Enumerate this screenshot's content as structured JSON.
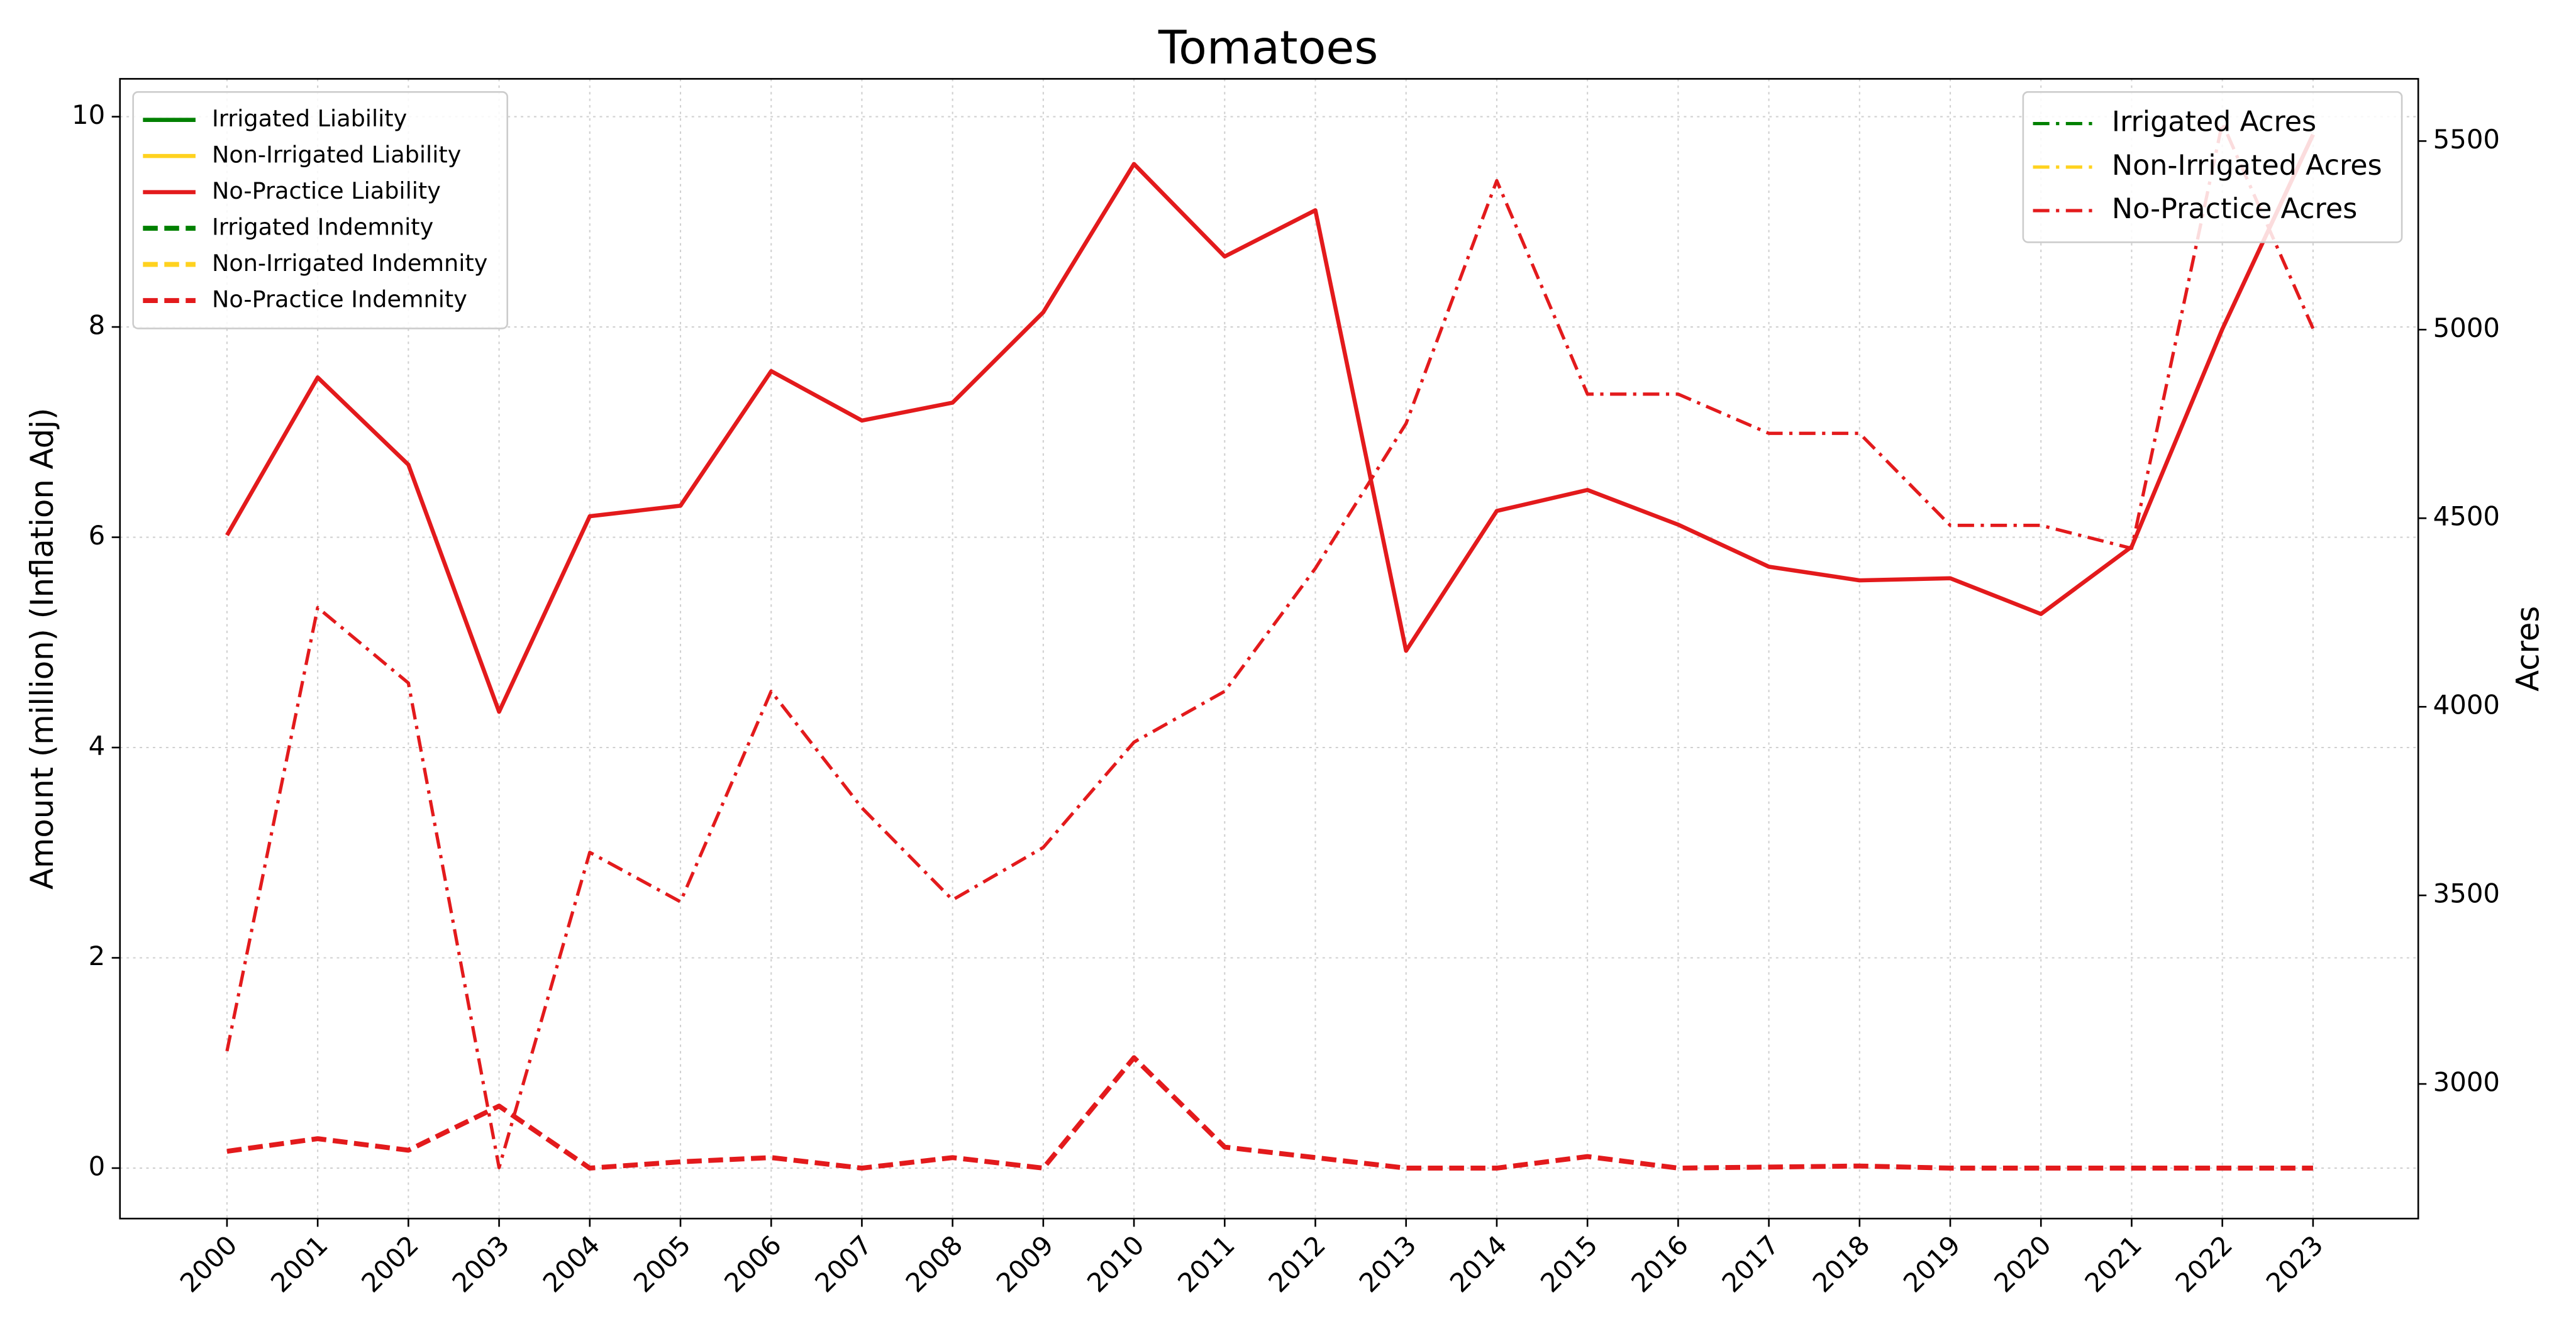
{
  "chart_data": {
    "type": "line",
    "title": "Tomatoes",
    "y_label": "Amount (million) (Inflation Adj)",
    "y2_label": "Acres",
    "x": [
      2000,
      2001,
      2002,
      2003,
      2004,
      2005,
      2006,
      2007,
      2008,
      2009,
      2010,
      2011,
      2012,
      2013,
      2014,
      2015,
      2016,
      2017,
      2018,
      2019,
      2020,
      2021,
      2022,
      2023
    ],
    "xticks": [
      2000,
      2001,
      2002,
      2003,
      2004,
      2005,
      2006,
      2007,
      2008,
      2009,
      2010,
      2011,
      2012,
      2013,
      2014,
      2015,
      2016,
      2017,
      2018,
      2019,
      2020,
      2021,
      2022,
      2023
    ],
    "xlim": [
      1998.82,
      2024.16
    ],
    "ylim": [
      -0.48,
      10.36
    ],
    "yticks": [
      0,
      2,
      4,
      6,
      8,
      10
    ],
    "y2lim": [
      2643,
      5665
    ],
    "y2ticks": [
      3000,
      3500,
      4000,
      4500,
      5000,
      5500
    ],
    "grid": true,
    "legend": "upper left",
    "y2_legend": "upper right",
    "series": [
      {
        "name": "Irrigated Liability",
        "color": "#008000",
        "linestyle": "solid",
        "axis": "y",
        "values": [
          null,
          null,
          null,
          null,
          null,
          null,
          null,
          null,
          null,
          null,
          null,
          null,
          null,
          null,
          null,
          null,
          null,
          null,
          null,
          null,
          null,
          null,
          null,
          null
        ]
      },
      {
        "name": "Non-Irrigated Liability",
        "color": "#ffd21f",
        "linestyle": "solid",
        "axis": "y",
        "values": [
          null,
          null,
          null,
          null,
          null,
          null,
          null,
          null,
          null,
          null,
          null,
          null,
          null,
          null,
          null,
          null,
          null,
          null,
          null,
          null,
          null,
          null,
          null,
          null
        ]
      },
      {
        "name": "No-Practice Liability",
        "color": "#e31a1c",
        "linestyle": "solid",
        "axis": "y",
        "values": [
          6.02,
          7.52,
          6.69,
          4.34,
          6.2,
          6.3,
          7.58,
          7.11,
          7.28,
          8.14,
          9.55,
          8.67,
          9.11,
          4.92,
          6.25,
          6.45,
          6.12,
          5.72,
          5.59,
          5.61,
          5.27,
          5.91,
          7.98,
          9.83
        ]
      },
      {
        "name": "Irrigated Indemnity",
        "color": "#008000",
        "linestyle": "dashed",
        "axis": "y",
        "values": [
          null,
          null,
          null,
          null,
          null,
          null,
          null,
          null,
          null,
          null,
          null,
          null,
          null,
          null,
          null,
          null,
          null,
          null,
          null,
          null,
          null,
          null,
          null,
          null
        ]
      },
      {
        "name": "Non-Irrigated Indemnity",
        "color": "#ffd21f",
        "linestyle": "dashed",
        "axis": "y",
        "values": [
          null,
          null,
          null,
          null,
          null,
          null,
          null,
          null,
          null,
          null,
          null,
          null,
          null,
          null,
          null,
          null,
          null,
          null,
          null,
          null,
          null,
          null,
          null,
          null
        ]
      },
      {
        "name": "No-Practice Indemnity",
        "color": "#e31a1c",
        "linestyle": "dashed",
        "axis": "y",
        "values": [
          0.16,
          0.28,
          0.17,
          0.59,
          0.0,
          0.06,
          0.1,
          0.0,
          0.1,
          0.0,
          1.05,
          0.2,
          0.1,
          0.0,
          0.0,
          0.11,
          0.0,
          0.01,
          0.02,
          0.0,
          0.0,
          0.0,
          0.0,
          0.0
        ]
      },
      {
        "name": "Irrigated Acres",
        "color": "#008000",
        "linestyle": "dashdot",
        "axis": "y2",
        "values": [
          null,
          null,
          null,
          null,
          null,
          null,
          null,
          null,
          null,
          null,
          null,
          null,
          null,
          null,
          null,
          null,
          null,
          null,
          null,
          null,
          null,
          null,
          null,
          null
        ]
      },
      {
        "name": "Non-Irrigated Acres",
        "color": "#ffd21f",
        "linestyle": "dashdot",
        "axis": "y2",
        "values": [
          null,
          null,
          null,
          null,
          null,
          null,
          null,
          null,
          null,
          null,
          null,
          null,
          null,
          null,
          null,
          null,
          null,
          null,
          null,
          null,
          null,
          null,
          null,
          null
        ]
      },
      {
        "name": "No-Practice Acres",
        "color": "#e31a1c",
        "linestyle": "dashdot",
        "axis": "y2",
        "values": [
          3087,
          4263,
          4063,
          2778,
          3614,
          3483,
          4041,
          3732,
          3488,
          3627,
          3906,
          4041,
          4367,
          4751,
          5395,
          4829,
          4829,
          4725,
          4725,
          4481,
          4481,
          4420,
          5548,
          5003
        ]
      }
    ]
  }
}
